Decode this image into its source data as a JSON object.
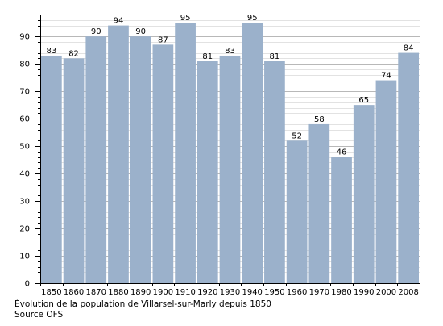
{
  "chart_data": {
    "type": "bar",
    "categories": [
      "1850",
      "1860",
      "1870",
      "1880",
      "1890",
      "1900",
      "1910",
      "1920",
      "1930",
      "1940",
      "1950",
      "1960",
      "1970",
      "1980",
      "1990",
      "2000",
      "2008"
    ],
    "values": [
      83,
      82,
      90,
      94,
      90,
      87,
      95,
      81,
      83,
      95,
      81,
      52,
      58,
      46,
      65,
      74,
      84
    ],
    "ylim": [
      0,
      98
    ],
    "yticks": [
      0,
      10,
      20,
      30,
      40,
      50,
      60,
      70,
      80,
      90
    ],
    "minor_tick_step": 2,
    "grid": true,
    "bar_color": "#9bb1cb",
    "title": "",
    "xlabel": "",
    "ylabel": ""
  },
  "caption": {
    "line1": "Évolution de la population de Villarsel-sur-Marly depuis 1850",
    "line2": "Source OFS"
  }
}
